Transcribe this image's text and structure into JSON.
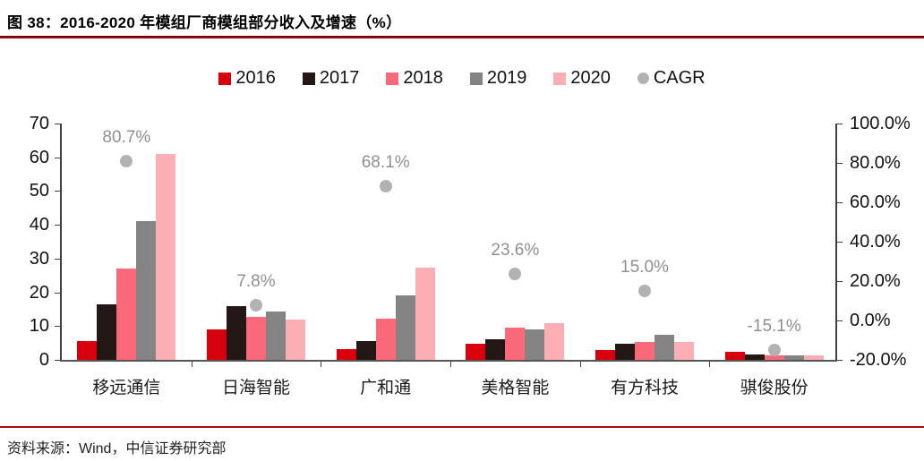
{
  "figure": {
    "title": "图 38：2016-2020 年模组厂商模组部分收入及增速（%）",
    "source": "资料来源：Wind，中信证券研究部"
  },
  "colors": {
    "series_2016": "#d9000d",
    "series_2017": "#231815",
    "series_2018": "#f9697a",
    "series_2019": "#848484",
    "series_2020": "#fbaeb4",
    "cagr_marker": "#b2b2b2",
    "cagr_label_text": "#8f8f8f",
    "accent_rule": "#a40a10",
    "axis_line": "#404040"
  },
  "chart_data": {
    "type": "bar",
    "title": "图 38：2016-2020 年模组厂商模组部分收入及增速（%）",
    "categories": [
      "移远通信",
      "日海智能",
      "广和通",
      "美格智能",
      "有方科技",
      "骐俊股份"
    ],
    "series": [
      {
        "name": "2016",
        "values": [
          5.7,
          9.0,
          3.3,
          4.7,
          3.0,
          2.4
        ]
      },
      {
        "name": "2017",
        "values": [
          16.5,
          15.8,
          5.6,
          6.2,
          4.7,
          1.6
        ]
      },
      {
        "name": "2018",
        "values": [
          27.0,
          12.6,
          12.3,
          9.6,
          5.2,
          1.2
        ]
      },
      {
        "name": "2019",
        "values": [
          41.0,
          14.2,
          19.0,
          9.0,
          7.5,
          1.3
        ]
      },
      {
        "name": "2020",
        "values": [
          61.0,
          12.0,
          27.4,
          10.9,
          5.3,
          1.3
        ]
      }
    ],
    "cagr": {
      "name": "CAGR",
      "values_pct": [
        80.7,
        7.8,
        68.1,
        23.6,
        15.0,
        -15.1
      ],
      "labels": [
        "80.7%",
        "7.8%",
        "68.1%",
        "23.6%",
        "15.0%",
        "-15.1%"
      ]
    },
    "left_axis": {
      "ticks": [
        "70",
        "60",
        "50",
        "40",
        "30",
        "20",
        "10",
        "0"
      ],
      "min": 0,
      "max": 70
    },
    "right_axis": {
      "ticks": [
        "100.0%",
        "80.0%",
        "60.0%",
        "40.0%",
        "20.0%",
        "0.0%",
        "-20.0%"
      ],
      "min": -20,
      "max": 100
    },
    "legend": [
      "2016",
      "2017",
      "2018",
      "2019",
      "2020",
      "CAGR"
    ],
    "legend_position": "top",
    "grid": false
  }
}
